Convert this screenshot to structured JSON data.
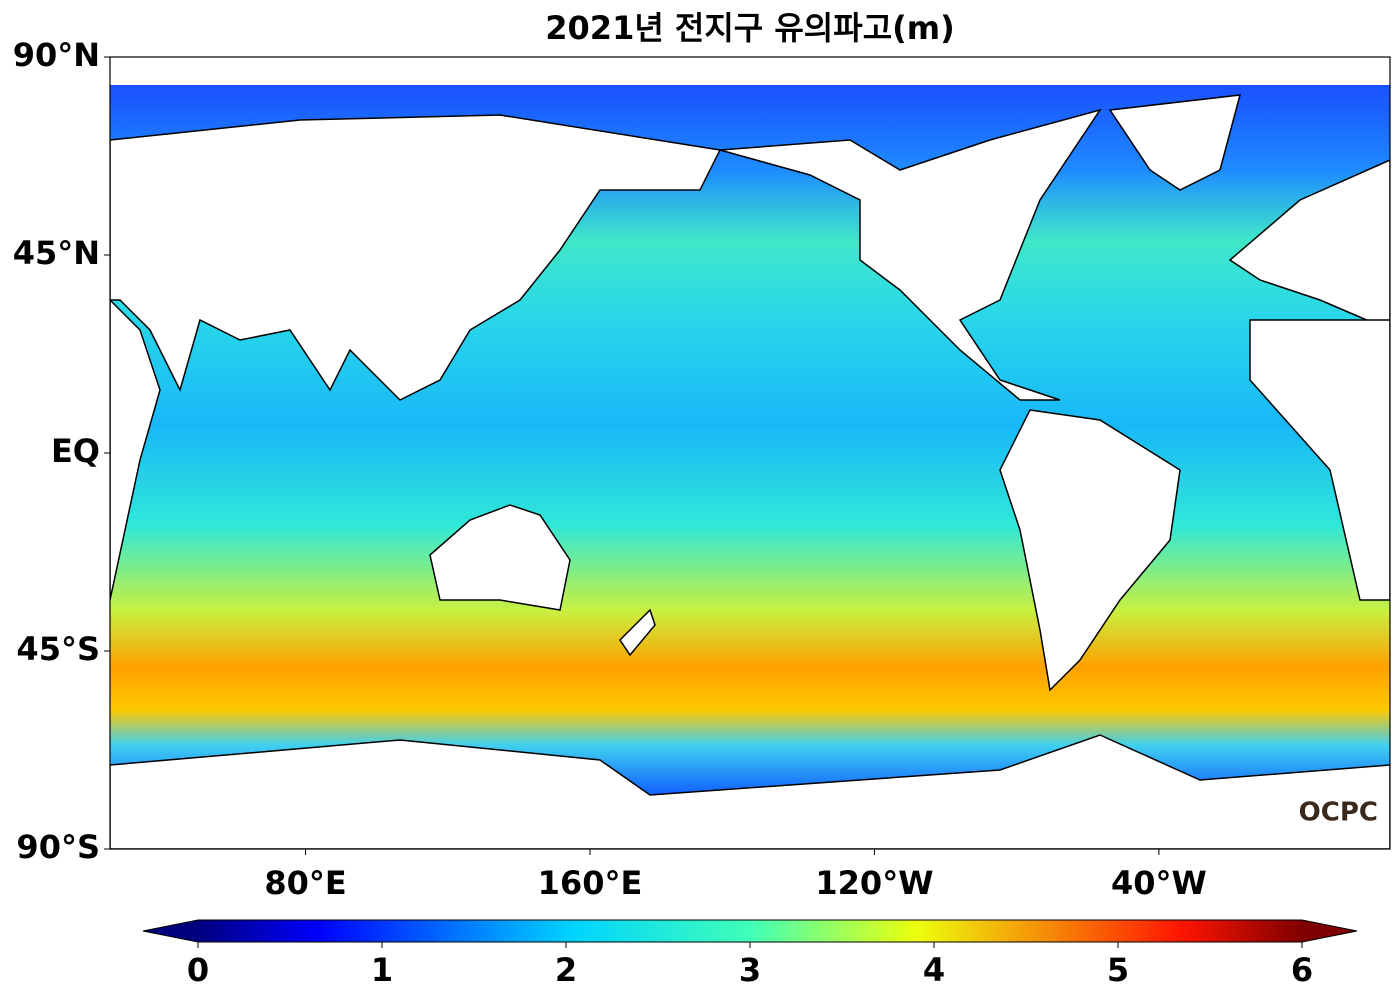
{
  "map": {
    "title": "2021년 전지구 유의파고(m)",
    "lonlim": [
      25,
      385
    ],
    "latlim": [
      -90,
      90
    ],
    "latticks": [
      {
        "value": 90,
        "label": "90°N"
      },
      {
        "value": 45,
        "label": "45°N"
      },
      {
        "value": 0,
        "label": "EQ"
      },
      {
        "value": -45,
        "label": "45°S"
      },
      {
        "value": -90,
        "label": "90°S"
      }
    ],
    "lonticks": [
      {
        "value": 80,
        "label": "80°E"
      },
      {
        "value": 160,
        "label": "160°E"
      },
      {
        "value": 240,
        "label": "120°W"
      },
      {
        "value": 320,
        "label": "40°W"
      }
    ],
    "colormap": "jet",
    "colorbar": {
      "clim": [
        0,
        6
      ],
      "ticks": [
        0,
        1,
        2,
        3,
        4,
        5,
        6
      ]
    },
    "logo": "OCPC"
  }
}
